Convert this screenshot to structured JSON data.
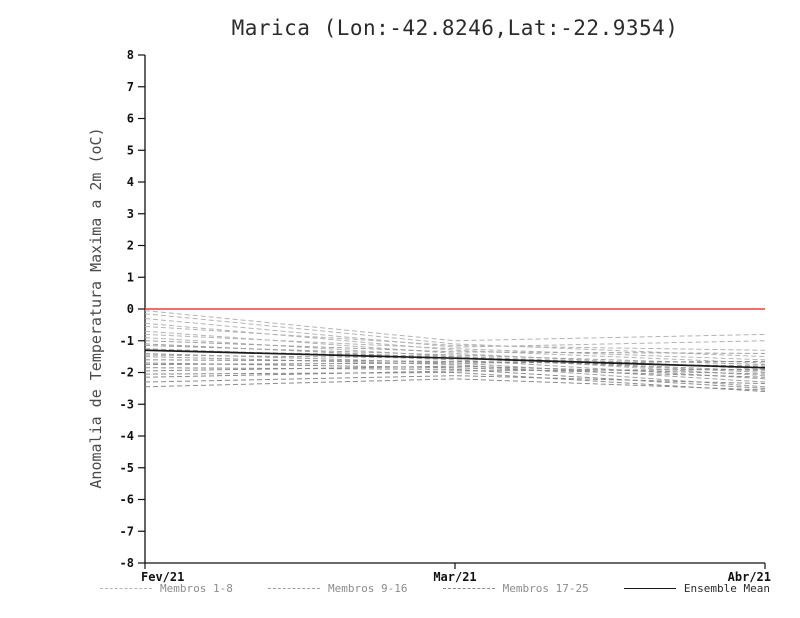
{
  "chart_data": {
    "type": "line",
    "title": "Marica (Lon:-42.8246,Lat:-22.9354)",
    "xlabel": "",
    "ylabel": "Anomalia de Temperatura Maxima a 2m (oC)",
    "x_categories": [
      "Fev/21",
      "Mar/21",
      "Abr/21"
    ],
    "ylim": [
      -8,
      8
    ],
    "yticks": [
      8,
      7,
      6,
      5,
      4,
      3,
      2,
      1,
      0,
      -1,
      -2,
      -3,
      -4,
      -5,
      -6,
      -7,
      -8
    ],
    "grid": false,
    "zero_line": {
      "y": 0,
      "color": "#f03b3b"
    },
    "axis_color": "#111111",
    "groups": [
      {
        "name": "Membros 1-8",
        "color": "#b3b3b3",
        "dash": "5 3",
        "members": [
          [
            -0.05,
            -1.0,
            -0.8
          ],
          [
            -0.15,
            -1.1,
            -1.5
          ],
          [
            -0.3,
            -1.2,
            -1.0
          ],
          [
            -0.45,
            -1.3,
            -1.7
          ],
          [
            -0.55,
            -1.15,
            -1.3
          ],
          [
            -0.7,
            -1.4,
            -1.9
          ],
          [
            -0.8,
            -1.25,
            -1.6
          ],
          [
            -0.9,
            -1.5,
            -2.1
          ]
        ]
      },
      {
        "name": "Membros 9-16",
        "color": "#9e9e9e",
        "dash": "5 3",
        "members": [
          [
            -1.0,
            -1.35,
            -1.4
          ],
          [
            -1.1,
            -1.55,
            -2.0
          ],
          [
            -1.15,
            -1.45,
            -1.75
          ],
          [
            -1.25,
            -1.6,
            -2.2
          ],
          [
            -1.3,
            -1.5,
            -1.85
          ],
          [
            -1.4,
            -1.7,
            -2.3
          ],
          [
            -1.45,
            -1.55,
            -1.95
          ],
          [
            -1.5,
            -1.75,
            -2.45
          ]
        ]
      },
      {
        "name": "Membros 17-25",
        "color": "#8a8a8a",
        "dash": "5 3",
        "members": [
          [
            -1.6,
            -1.65,
            -1.8
          ],
          [
            -1.7,
            -1.85,
            -2.15
          ],
          [
            -1.75,
            -1.7,
            -1.65
          ],
          [
            -1.85,
            -1.9,
            -2.5
          ],
          [
            -1.95,
            -1.8,
            -2.05
          ],
          [
            -2.05,
            -2.0,
            -2.6
          ],
          [
            -2.15,
            -1.95,
            -1.9
          ],
          [
            -2.3,
            -2.1,
            -2.35
          ],
          [
            -2.45,
            -2.2,
            -2.55
          ]
        ]
      }
    ],
    "mean": {
      "name": "Ensemble Mean",
      "color": "#1a1a1a",
      "values": [
        -1.3,
        -1.55,
        -1.85
      ]
    },
    "legend": [
      {
        "label": "Membros 1-8",
        "color": "#b3b3b3",
        "style": "dashed",
        "text_color": "#8c8c8c"
      },
      {
        "label": "Membros 9-16",
        "color": "#9e9e9e",
        "style": "dashed",
        "text_color": "#8c8c8c"
      },
      {
        "label": "Membros 17-25",
        "color": "#8a8a8a",
        "style": "dashed",
        "text_color": "#8c8c8c"
      },
      {
        "label": "Ensemble Mean",
        "color": "#1a1a1a",
        "style": "solid",
        "text_color": "#2b2b2b"
      }
    ]
  }
}
